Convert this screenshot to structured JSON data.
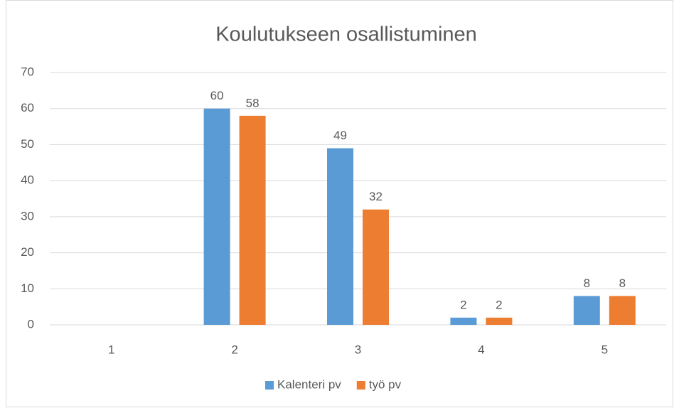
{
  "chart_data": {
    "type": "bar",
    "title": "Koulutukseen osallistuminen",
    "categories": [
      "1",
      "2",
      "3",
      "4",
      "5"
    ],
    "series": [
      {
        "name": "Kalenteri pv",
        "color": "#5b9bd5",
        "values": [
          null,
          60,
          49,
          2,
          8
        ]
      },
      {
        "name": "työ pv",
        "color": "#ed7d31",
        "values": [
          null,
          58,
          32,
          2,
          8
        ]
      }
    ],
    "ylim": [
      0,
      70
    ],
    "yticks": [
      0,
      10,
      20,
      30,
      40,
      50,
      60,
      70
    ],
    "grid": true,
    "legend": "bottom"
  }
}
